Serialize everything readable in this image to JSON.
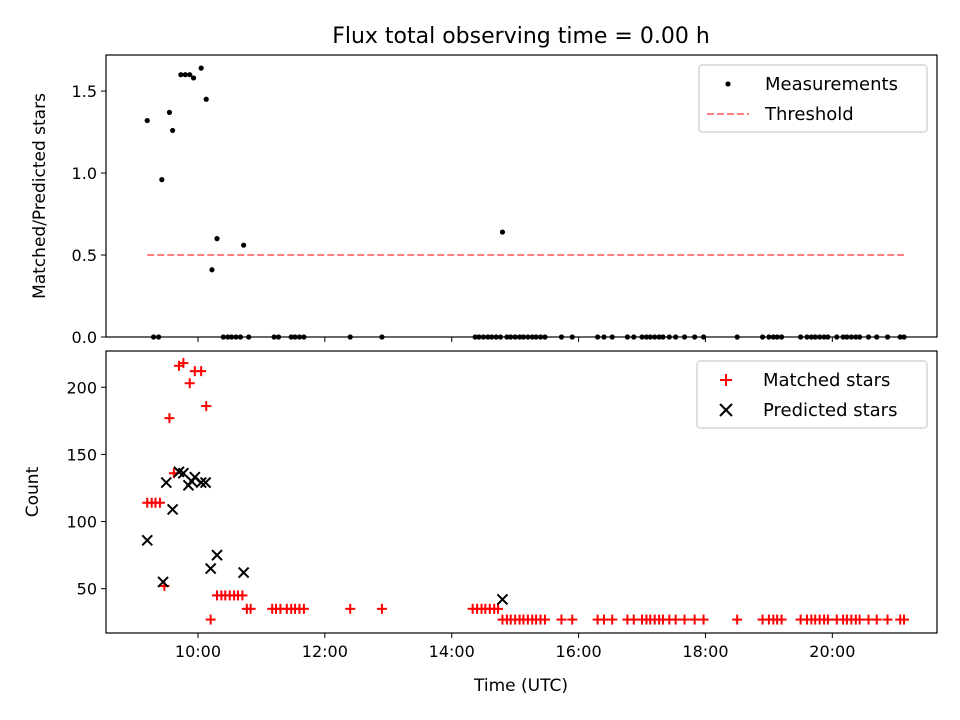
{
  "chart_data": [
    {
      "type": "scatter",
      "title": "Flux total observing time = 0.00 h",
      "xlabel": "",
      "ylabel": "Matched/Predicted stars",
      "xlim": [
        8.55,
        21.65
      ],
      "ylim": [
        0.0,
        1.72
      ],
      "yticks": [
        0.0,
        0.5,
        1.0,
        1.5
      ],
      "ytick_labels": [
        "0.0",
        "0.5",
        "1.0",
        "1.5"
      ],
      "legend": [
        {
          "label": "Measurements",
          "marker": "dot",
          "color": "#000000"
        },
        {
          "label": "Threshold",
          "marker": "dashed-line",
          "color": "#ff7f7f"
        }
      ],
      "legend_position": "top-right",
      "series": [
        {
          "name": "Measurements",
          "color": "#000000",
          "x": [
            9.2,
            9.43,
            9.55,
            9.6,
            9.73,
            9.8,
            9.87,
            9.93,
            10.05,
            10.13,
            10.22,
            10.3,
            10.72,
            14.8,
            9.3,
            9.38,
            10.4,
            10.47,
            10.53,
            10.6,
            10.67,
            10.8,
            11.2,
            11.27,
            11.47,
            11.53,
            11.6,
            11.67,
            12.4,
            12.9,
            14.37,
            14.43,
            14.5,
            14.57,
            14.63,
            14.7,
            14.77,
            14.87,
            14.93,
            15.0,
            15.07,
            15.13,
            15.2,
            15.27,
            15.33,
            15.4,
            15.47,
            15.73,
            15.9,
            16.3,
            16.4,
            16.53,
            16.77,
            16.87,
            17.0,
            17.07,
            17.13,
            17.2,
            17.27,
            17.33,
            17.43,
            17.53,
            17.67,
            17.83,
            17.97,
            18.5,
            18.9,
            19.0,
            19.07,
            19.13,
            19.2,
            19.5,
            19.6,
            19.67,
            19.73,
            19.8,
            19.87,
            19.93,
            20.07,
            20.17,
            20.23,
            20.3,
            20.37,
            20.43,
            20.57,
            20.7,
            20.87,
            21.07,
            21.13
          ],
          "y": [
            1.32,
            0.96,
            1.37,
            1.26,
            1.6,
            1.6,
            1.6,
            1.58,
            1.64,
            1.45,
            0.41,
            0.6,
            0.56,
            0.64,
            0,
            0,
            0,
            0,
            0,
            0,
            0,
            0,
            0,
            0,
            0,
            0,
            0,
            0,
            0,
            0,
            0,
            0,
            0,
            0,
            0,
            0,
            0,
            0,
            0,
            0,
            0,
            0,
            0,
            0,
            0,
            0,
            0,
            0,
            0,
            0,
            0,
            0,
            0,
            0,
            0,
            0,
            0,
            0,
            0,
            0,
            0,
            0,
            0,
            0,
            0,
            0,
            0,
            0,
            0,
            0,
            0,
            0,
            0,
            0,
            0,
            0,
            0,
            0,
            0,
            0,
            0,
            0,
            0,
            0,
            0,
            0,
            0,
            0,
            0
          ]
        },
        {
          "name": "Threshold",
          "color": "#ff7f7f",
          "x": [
            9.2,
            21.13
          ],
          "y": [
            0.5,
            0.5
          ]
        }
      ]
    },
    {
      "type": "scatter",
      "title": "",
      "xlabel": "Time (UTC)",
      "ylabel": "Count",
      "xlim": [
        8.55,
        21.65
      ],
      "ylim": [
        17,
        227
      ],
      "yticks": [
        50,
        100,
        150,
        200
      ],
      "ytick_labels": [
        "50",
        "100",
        "150",
        "200"
      ],
      "xticks": [
        10,
        12,
        14,
        16,
        18,
        20
      ],
      "xtick_labels": [
        "10:00",
        "12:00",
        "14:00",
        "16:00",
        "18:00",
        "20:00"
      ],
      "legend": [
        {
          "label": "Matched stars",
          "marker": "plus",
          "color": "#ff0000"
        },
        {
          "label": "Predicted stars",
          "marker": "x",
          "color": "#000000"
        }
      ],
      "legend_position": "top-right",
      "series": [
        {
          "name": "Matched stars",
          "color": "#ff0000",
          "x": [
            9.2,
            9.27,
            9.33,
            9.4,
            9.47,
            9.55,
            9.62,
            9.7,
            9.77,
            9.87,
            9.95,
            10.05,
            10.13,
            10.2,
            10.3,
            10.37,
            10.43,
            10.5,
            10.57,
            10.63,
            10.7,
            10.77,
            10.83,
            11.17,
            11.23,
            11.3,
            11.4,
            11.47,
            11.53,
            11.6,
            11.67,
            12.4,
            12.9,
            14.33,
            14.4,
            14.47,
            14.53,
            14.6,
            14.67,
            14.73,
            14.8,
            14.87,
            14.93,
            15.0,
            15.07,
            15.13,
            15.2,
            15.27,
            15.33,
            15.4,
            15.47,
            15.73,
            15.9,
            16.3,
            16.4,
            16.53,
            16.77,
            16.87,
            17.0,
            17.07,
            17.13,
            17.2,
            17.27,
            17.33,
            17.43,
            17.53,
            17.67,
            17.83,
            17.97,
            18.5,
            18.9,
            19.0,
            19.07,
            19.13,
            19.2,
            19.5,
            19.6,
            19.67,
            19.73,
            19.8,
            19.87,
            19.93,
            20.07,
            20.17,
            20.23,
            20.3,
            20.37,
            20.43,
            20.57,
            20.7,
            20.87,
            21.07,
            21.13
          ],
          "y": [
            114,
            114,
            114,
            114,
            52,
            177,
            136,
            216,
            218,
            203,
            212,
            212,
            186,
            27,
            45,
            45,
            45,
            45,
            45,
            45,
            45,
            35,
            35,
            35,
            35,
            35,
            35,
            35,
            35,
            35,
            35,
            35,
            35,
            35,
            35,
            35,
            35,
            35,
            35,
            35,
            27,
            27,
            27,
            27,
            27,
            27,
            27,
            27,
            27,
            27,
            27,
            27,
            27,
            27,
            27,
            27,
            27,
            27,
            27,
            27,
            27,
            27,
            27,
            27,
            27,
            27,
            27,
            27,
            27,
            27,
            27,
            27,
            27,
            27,
            27,
            27,
            27,
            27,
            27,
            27,
            27,
            27,
            27,
            27,
            27,
            27,
            27,
            27,
            27,
            27,
            27,
            27,
            27
          ]
        },
        {
          "name": "Predicted stars",
          "color": "#000000",
          "x": [
            9.2,
            9.45,
            9.5,
            9.6,
            9.7,
            9.77,
            9.85,
            9.9,
            9.95,
            10.05,
            10.12,
            10.2,
            10.3,
            10.72,
            14.8
          ],
          "y": [
            86,
            55,
            129,
            109,
            137,
            136,
            127,
            130,
            133,
            129,
            129,
            65,
            75,
            62,
            42
          ]
        }
      ]
    }
  ]
}
